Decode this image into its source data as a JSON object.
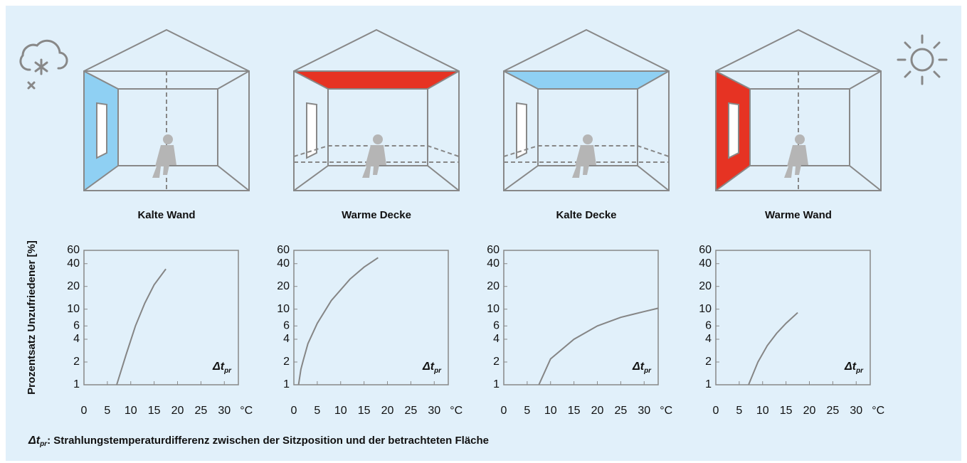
{
  "chart_data": [
    {
      "type": "line",
      "title": "Kalte Wand",
      "ylabel": "Prozentsatz Unzufriedener [%]",
      "xlabel": "°C",
      "annotation": "Δt",
      "annotation_sub": "pr",
      "surface": "wall",
      "surface_color": "#8fd0f3",
      "color": "#858585",
      "log_y": true,
      "xlim": [
        0,
        33
      ],
      "ylim": [
        1,
        60
      ],
      "xticks": [
        0,
        5,
        10,
        15,
        20,
        25,
        30
      ],
      "yticks": [
        1,
        2,
        4,
        6,
        10,
        20,
        40,
        60
      ],
      "x": [
        7,
        9,
        11,
        13,
        15,
        17.5
      ],
      "values": [
        1,
        2.5,
        6,
        12,
        21,
        34
      ]
    },
    {
      "type": "line",
      "title": "Warme Decke",
      "xlabel": "°C",
      "annotation": "Δt",
      "annotation_sub": "pr",
      "surface": "ceiling",
      "surface_color": "#e63323",
      "color": "#858585",
      "log_y": true,
      "xlim": [
        0,
        33
      ],
      "ylim": [
        1,
        60
      ],
      "xticks": [
        0,
        5,
        10,
        15,
        20,
        25,
        30
      ],
      "yticks": [
        1,
        2,
        4,
        6,
        10,
        20,
        40,
        60
      ],
      "x": [
        1,
        1.5,
        2,
        3,
        5,
        8,
        12,
        15,
        18
      ],
      "values": [
        1,
        1.6,
        2.1,
        3.5,
        6.5,
        13,
        25,
        36,
        48
      ]
    },
    {
      "type": "line",
      "title": "Kalte Decke",
      "xlabel": "°C",
      "annotation": "Δt",
      "annotation_sub": "pr",
      "surface": "ceiling",
      "surface_color": "#8fd0f3",
      "color": "#858585",
      "log_y": true,
      "xlim": [
        0,
        33
      ],
      "ylim": [
        1,
        60
      ],
      "xticks": [
        0,
        5,
        10,
        15,
        20,
        25,
        30
      ],
      "yticks": [
        1,
        2,
        4,
        6,
        10,
        20,
        40,
        60
      ],
      "x": [
        7.5,
        10,
        15,
        20,
        25,
        30,
        33
      ],
      "values": [
        1,
        2.2,
        4,
        6,
        7.8,
        9.3,
        10.3
      ]
    },
    {
      "type": "line",
      "title": "Warme Wand",
      "xlabel": "°C",
      "annotation": "Δt",
      "annotation_sub": "pr",
      "surface": "wall",
      "surface_color": "#e63323",
      "color": "#858585",
      "log_y": true,
      "xlim": [
        0,
        33
      ],
      "ylim": [
        1,
        60
      ],
      "xticks": [
        0,
        5,
        10,
        15,
        20,
        25,
        30
      ],
      "yticks": [
        1,
        2,
        4,
        6,
        10,
        20,
        40,
        60
      ],
      "x": [
        7,
        9,
        11,
        13,
        15,
        17.5
      ],
      "values": [
        1,
        2,
        3.3,
        4.8,
        6.5,
        9
      ]
    }
  ],
  "footnote": {
    "symbol": "Δt",
    "symbol_sub": "pr",
    "text": ": Strahlungstemperaturdifferenz zwischen der Sitzposition und der betrachteten Fläche"
  }
}
